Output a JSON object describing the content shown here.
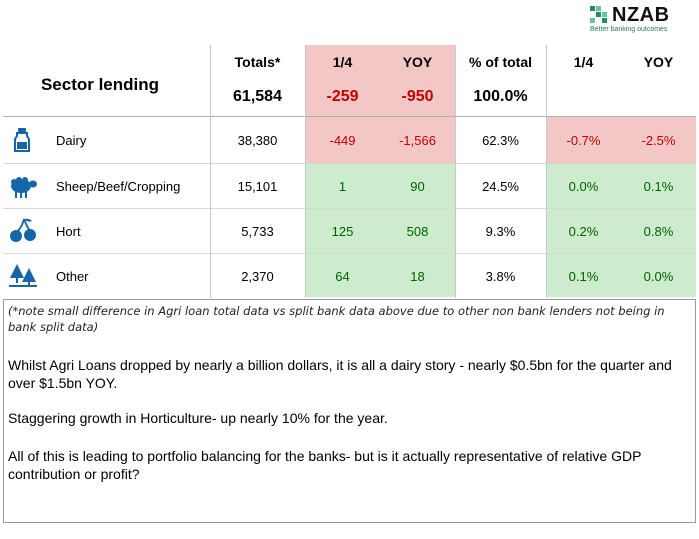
{
  "brand": {
    "name": "NZAB",
    "tagline": "Better banking outcomes",
    "accent": "#1f8f63"
  },
  "title": "Sector lending",
  "headers": [
    "Totals*",
    "1/4",
    "YOY",
    "% of total",
    "1/4",
    "YOY"
  ],
  "totals": {
    "total": "61,584",
    "q": "-259",
    "yoy": "-950",
    "pct": "100.0%"
  },
  "rows": [
    {
      "icon": "milk-bottle-icon",
      "label": "Dairy",
      "total": "38,380",
      "q": "-449",
      "yoy": "-1,566",
      "pct": "62.3%",
      "q_pct": "-0.7%",
      "yoy_pct": "-2.5%"
    },
    {
      "icon": "sheep-icon",
      "label": "Sheep/Beef/Cropping",
      "total": "15,101",
      "q": "1",
      "yoy": "90",
      "pct": "24.5%",
      "q_pct": "0.0%",
      "yoy_pct": "0.1%"
    },
    {
      "icon": "cherries-icon",
      "label": "Hort",
      "total": "5,733",
      "q": "125",
      "yoy": "508",
      "pct": "9.3%",
      "q_pct": "0.2%",
      "yoy_pct": "0.8%"
    },
    {
      "icon": "trees-icon",
      "label": "Other",
      "total": "2,370",
      "q": "64",
      "yoy": "18",
      "pct": "3.8%",
      "q_pct": "0.1%",
      "yoy_pct": "0.0%"
    }
  ],
  "colors": {
    "negative_bg": "#f4c7c7",
    "positive_bg": "#cdeccd",
    "negative_text": "#c00000",
    "icon_blue": "#1565a8"
  },
  "note": "(*note small difference in Agri loan total data vs split bank data above due to other non bank lenders not being in bank split data)",
  "paragraphs": [
    "Whilst Agri Loans dropped by nearly a billion dollars, it is all a dairy story - nearly $0.5bn for the quarter and over $1.5bn  YOY.",
    "Staggering growth in Horticulture- up nearly 10% for the year.",
    "All of this is leading to portfolio balancing for the banks- but is it actually representative  of relative GDP contribution  or profit?"
  ]
}
